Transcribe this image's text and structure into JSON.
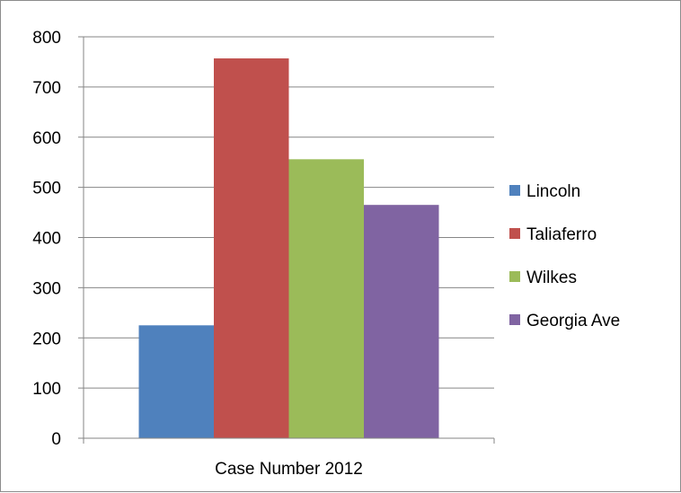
{
  "chart_data": {
    "type": "bar",
    "title": "",
    "xlabel": "",
    "ylabel": "",
    "categories": [
      "Case Number 2012"
    ],
    "series": [
      {
        "name": "Lincoln",
        "color": "#4F81BD",
        "values": [
          225
        ]
      },
      {
        "name": "Taliaferro",
        "color": "#C0504D",
        "values": [
          757
        ]
      },
      {
        "name": "Wilkes",
        "color": "#9BBB59",
        "values": [
          556
        ]
      },
      {
        "name": "Georgia Ave",
        "color": "#8064A2",
        "values": [
          465
        ]
      }
    ],
    "ylim": [
      0,
      800
    ],
    "yticks": [
      0,
      100,
      200,
      300,
      400,
      500,
      600,
      700,
      800
    ],
    "grid": true,
    "legend_position": "right"
  }
}
